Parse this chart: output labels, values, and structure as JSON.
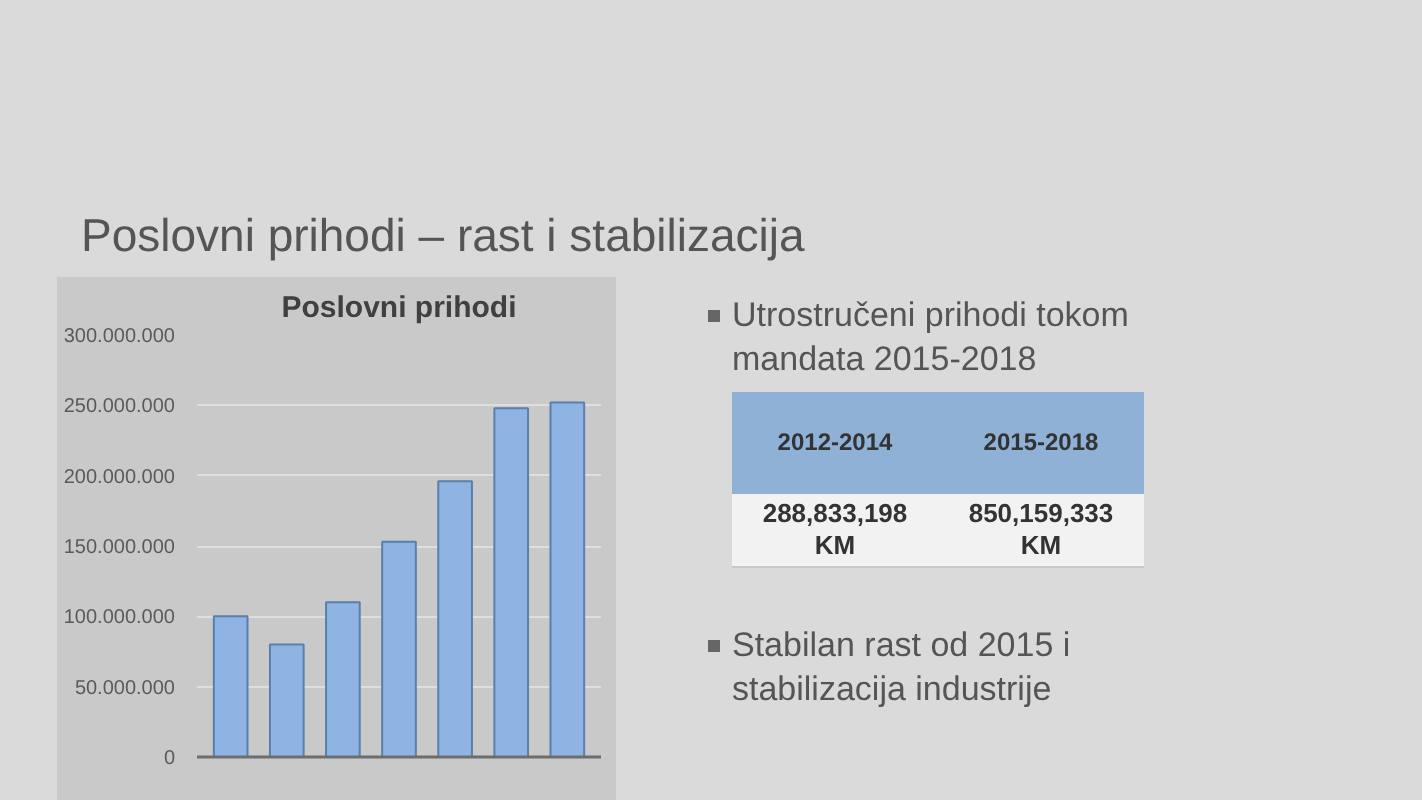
{
  "chart_data": [
    {
      "type": "bar",
      "title": "Poslovni prihodi – rast i stabilizacija",
      "subtitle": "Poslovni prihodi",
      "categories": [
        null,
        null,
        null,
        null,
        null,
        null,
        null
      ],
      "values": [
        100000000,
        80000000,
        110000000,
        153000000,
        196000000,
        248000000,
        252000000
      ],
      "color": "#8eb4e3",
      "ylim": [
        0,
        300000000
      ],
      "yticks": [
        0,
        {
          "value": 50000000,
          "label": "50.000.000"
        },
        {
          "value": 100000000,
          "label": "100.000.000"
        },
        {
          "value": 150000000,
          "label": "150.000.000"
        },
        {
          "value": 200000000,
          "label": "200.000.000"
        },
        {
          "value": 250000000,
          "label": "250.000.000"
        },
        {
          "value": 300000000,
          "label": "300.000.000"
        }
      ],
      "grid": "y",
      "tick_labels": "y"
    },
    {
      "type": "other",
      "annotations": [
        "Utrostručeni prihodi tokom mandata 2015-2018",
        "2012-2014",
        "2015-2018",
        "288,833,198 KM",
        "850,159,333 KM",
        "Stabilan rast od 2015 i stabilizacija industrije"
      ]
    }
  ]
}
